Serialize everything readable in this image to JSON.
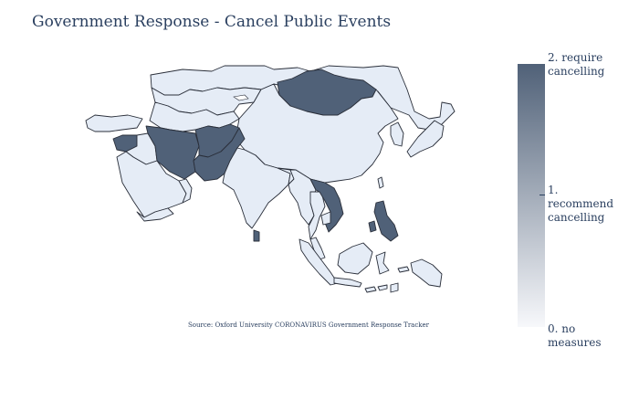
{
  "title": "Government Response - Cancel Public Events",
  "source": "Source:  Oxford University CORONAVIRUS Government Response Tracker",
  "colorbar": {
    "labels": [
      "2. require cancelling",
      "1. recommend cancelling",
      "0. no measures"
    ],
    "color_high": "#506178",
    "color_low": "#f7f8fb"
  },
  "colors": {
    "no_measures": "#e5ecf6",
    "require_cancelling": "#506178",
    "border": "#2a2f3a"
  },
  "regions": [
    {
      "name": "Mongolia",
      "level": 2
    },
    {
      "name": "Iran",
      "level": 2
    },
    {
      "name": "Afghanistan",
      "level": 2
    },
    {
      "name": "Pakistan",
      "level": 2
    },
    {
      "name": "Syria",
      "level": 2
    },
    {
      "name": "Vietnam",
      "level": 2
    },
    {
      "name": "Laos",
      "level": 2
    },
    {
      "name": "Philippines",
      "level": 2
    },
    {
      "name": "Sri Lanka",
      "level": 2
    },
    {
      "name": "China",
      "level": 0
    },
    {
      "name": "Russia",
      "level": 0
    },
    {
      "name": "Kazakhstan",
      "level": 0
    },
    {
      "name": "India",
      "level": 0
    },
    {
      "name": "Saudi Arabia",
      "level": 0
    },
    {
      "name": "Turkey",
      "level": 0
    },
    {
      "name": "Japan",
      "level": 0
    },
    {
      "name": "Indonesia",
      "level": 0
    },
    {
      "name": "Myanmar",
      "level": 0
    },
    {
      "name": "Thailand",
      "level": 0
    },
    {
      "name": "Malaysia",
      "level": 0
    },
    {
      "name": "Korea",
      "level": 0
    },
    {
      "name": "Iraq",
      "level": 0
    },
    {
      "name": "Yemen",
      "level": 0
    },
    {
      "name": "Oman",
      "level": 0
    }
  ]
}
